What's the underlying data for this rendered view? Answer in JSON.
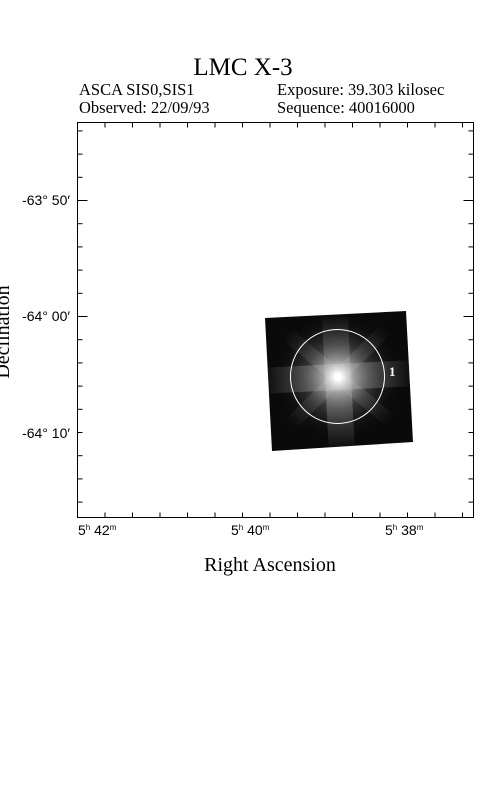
{
  "header": {
    "title": "LMC X-3",
    "instrument": "ASCA SIS0,SIS1",
    "observed": "Observed: 22/09/93",
    "exposure": "Exposure: 39.303 kilosec",
    "sequence": "Sequence: 40016000"
  },
  "chart_data": {
    "type": "image",
    "title": "LMC X-3",
    "xlabel": "Right Ascension",
    "ylabel": "Declination",
    "x_ticks": [
      {
        "h": "5",
        "m": "42"
      },
      {
        "h": "5",
        "m": "40"
      },
      {
        "h": "5",
        "m": "38"
      }
    ],
    "y_ticks": [
      {
        "label": "-63° 50′"
      },
      {
        "label": "-64° 00′"
      },
      {
        "label": "-64° 10′"
      }
    ],
    "source_region": {
      "label": "1",
      "shape": "circle",
      "color": "#ffffff"
    },
    "image_colors": {
      "background": "#0a0a0a",
      "source_core": "#ffffff"
    }
  }
}
